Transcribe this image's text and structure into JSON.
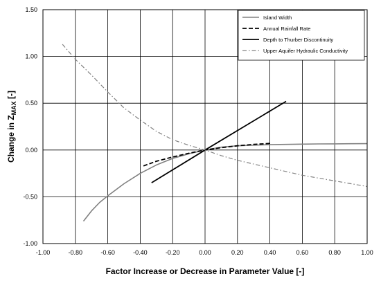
{
  "chart_data": {
    "type": "line",
    "title": "",
    "xlabel": "Factor Increase or Decrease in Parameter Value  [-]",
    "ylabel": {
      "prefix": "Change in Z",
      "subscript": "MAX",
      "suffix": " [-]"
    },
    "xlim": [
      -1.0,
      1.0
    ],
    "ylim": [
      -1.0,
      1.5
    ],
    "x_ticks": [
      -1.0,
      -0.8,
      -0.6,
      -0.4,
      -0.2,
      0.0,
      0.2,
      0.4,
      0.6,
      0.8,
      1.0
    ],
    "y_ticks": [
      -1.0,
      -0.5,
      0.0,
      0.5,
      1.0,
      1.5
    ],
    "x_tick_labels": [
      "-1.00",
      "-0.80",
      "-0.60",
      "-0.40",
      "-0.20",
      "0.00",
      "0.20",
      "0.40",
      "0.60",
      "0.80",
      "1.00"
    ],
    "y_tick_labels": [
      "-1.00",
      "-0.50",
      "0.00",
      "0.50",
      "1.00",
      "1.50"
    ],
    "grid": true,
    "legend_position": "top-right",
    "series": [
      {
        "name": "Island Width",
        "color": "#808080",
        "dash": "solid",
        "points": [
          [
            -0.75,
            -0.76
          ],
          [
            -0.7,
            -0.65
          ],
          [
            -0.65,
            -0.56
          ],
          [
            -0.6,
            -0.49
          ],
          [
            -0.5,
            -0.36
          ],
          [
            -0.4,
            -0.25
          ],
          [
            -0.3,
            -0.16
          ],
          [
            -0.2,
            -0.09
          ],
          [
            -0.1,
            -0.04
          ],
          [
            0.0,
            0.0
          ],
          [
            0.1,
            0.03
          ],
          [
            0.2,
            0.045
          ],
          [
            0.3,
            0.052
          ],
          [
            0.4,
            0.057
          ],
          [
            0.5,
            0.06
          ],
          [
            0.6,
            0.063
          ],
          [
            0.7,
            0.065
          ],
          [
            0.8,
            0.066
          ],
          [
            0.9,
            0.067
          ],
          [
            1.0,
            0.068
          ]
        ]
      },
      {
        "name": "Annual Rainfall Rate",
        "color": "#000000",
        "dash": "dashed",
        "points": [
          [
            -0.38,
            -0.17
          ],
          [
            -0.3,
            -0.12
          ],
          [
            -0.2,
            -0.075
          ],
          [
            -0.1,
            -0.035
          ],
          [
            0.0,
            0.0
          ],
          [
            0.1,
            0.025
          ],
          [
            0.2,
            0.045
          ],
          [
            0.3,
            0.06
          ],
          [
            0.4,
            0.07
          ]
        ]
      },
      {
        "name": "Depth to Thurber Discontinuity",
        "color": "#000000",
        "dash": "solid",
        "points": [
          [
            -0.33,
            -0.35
          ],
          [
            0.0,
            0.0
          ],
          [
            0.5,
            0.52
          ]
        ]
      },
      {
        "name": "Upper Aquifer Hydraulic Conductivity",
        "color": "#808080",
        "dash": "dashdot",
        "points": [
          [
            -0.88,
            1.13
          ],
          [
            -0.8,
            0.97
          ],
          [
            -0.7,
            0.8
          ],
          [
            -0.6,
            0.62
          ],
          [
            -0.5,
            0.45
          ],
          [
            -0.4,
            0.32
          ],
          [
            -0.3,
            0.2
          ],
          [
            -0.2,
            0.11
          ],
          [
            -0.1,
            0.05
          ],
          [
            0.0,
            0.0
          ],
          [
            0.1,
            -0.06
          ],
          [
            0.2,
            -0.11
          ],
          [
            0.3,
            -0.15
          ],
          [
            0.4,
            -0.19
          ],
          [
            0.5,
            -0.23
          ],
          [
            0.6,
            -0.27
          ],
          [
            0.7,
            -0.3
          ],
          [
            0.8,
            -0.33
          ],
          [
            0.9,
            -0.36
          ],
          [
            1.0,
            -0.39
          ]
        ]
      }
    ]
  }
}
